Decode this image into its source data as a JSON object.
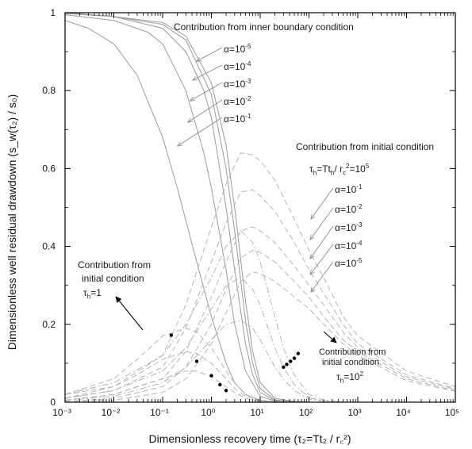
{
  "chart_data": {
    "type": "line",
    "title": "",
    "xlabel": "Dimensionless recovery time (τ₂=Tt₂ / r꜀²)",
    "ylabel": "Dimensionless well residual drawdown (s_w(τ₂) / s₀)",
    "x_scale": "log",
    "xlim": [
      0.001,
      100000
    ],
    "ylim": [
      0,
      1
    ],
    "x_ticks": [
      "10⁻³",
      "10⁻²",
      "10⁻¹",
      "10⁰",
      "10¹",
      "10²",
      "10³",
      "10⁴",
      "10⁵"
    ],
    "y_ticks": [
      "0",
      "0.2",
      "0.4",
      "0.6",
      "0.8",
      "1"
    ],
    "grid": false,
    "legend": "none",
    "series": [
      {
        "group": "inner-boundary",
        "label": "α=10⁻⁵",
        "style": "solid",
        "x": [
          0.001,
          0.01,
          0.1,
          0.3,
          1,
          2,
          3,
          5,
          7,
          10,
          20,
          50,
          100
        ],
        "y": [
          1.0,
          0.99,
          0.975,
          0.94,
          0.82,
          0.66,
          0.5,
          0.26,
          0.13,
          0.05,
          0.01,
          0.002,
          0.0
        ]
      },
      {
        "group": "inner-boundary",
        "label": "α=10⁻⁴",
        "style": "solid",
        "x": [
          0.001,
          0.01,
          0.1,
          0.3,
          1,
          2,
          3,
          5,
          7,
          10,
          20,
          50,
          100
        ],
        "y": [
          1.0,
          0.99,
          0.97,
          0.93,
          0.79,
          0.6,
          0.44,
          0.21,
          0.1,
          0.035,
          0.006,
          0.001,
          0.0
        ]
      },
      {
        "group": "inner-boundary",
        "label": "α=10⁻³",
        "style": "solid",
        "x": [
          0.001,
          0.01,
          0.1,
          0.3,
          0.7,
          1,
          2,
          3,
          5,
          7,
          10,
          20,
          50
        ],
        "y": [
          0.998,
          0.99,
          0.96,
          0.9,
          0.8,
          0.73,
          0.5,
          0.34,
          0.15,
          0.07,
          0.025,
          0.004,
          0.0
        ]
      },
      {
        "group": "inner-boundary",
        "label": "α=10⁻²",
        "style": "solid",
        "x": [
          0.001,
          0.01,
          0.05,
          0.1,
          0.3,
          0.7,
          1,
          2,
          3,
          5,
          10,
          20,
          50
        ],
        "y": [
          0.995,
          0.98,
          0.95,
          0.92,
          0.8,
          0.64,
          0.55,
          0.34,
          0.2,
          0.08,
          0.015,
          0.003,
          0.0
        ]
      },
      {
        "group": "inner-boundary",
        "label": "α=10⁻¹",
        "style": "solid",
        "x": [
          0.001,
          0.003,
          0.01,
          0.03,
          0.1,
          0.2,
          0.5,
          1,
          2,
          3,
          5,
          10,
          20,
          50
        ],
        "y": [
          0.98,
          0.96,
          0.92,
          0.84,
          0.68,
          0.55,
          0.36,
          0.22,
          0.1,
          0.05,
          0.02,
          0.005,
          0.001,
          0.0
        ]
      },
      {
        "group": "initial-condition-1e5",
        "label": "α=10⁻¹",
        "style": "dashed",
        "x": [
          0.001,
          0.01,
          0.1,
          0.3,
          1,
          2,
          4,
          7,
          10,
          20,
          50,
          100,
          200,
          500,
          1000,
          10000,
          100000
        ],
        "y": [
          0.02,
          0.04,
          0.12,
          0.25,
          0.45,
          0.56,
          0.64,
          0.635,
          0.62,
          0.57,
          0.47,
          0.39,
          0.32,
          0.22,
          0.17,
          0.08,
          0.04
        ]
      },
      {
        "group": "initial-condition-1e5",
        "label": "α=10⁻²",
        "style": "dashed",
        "x": [
          0.001,
          0.01,
          0.1,
          0.3,
          1,
          2,
          4,
          7,
          10,
          20,
          50,
          100,
          200,
          500,
          1000,
          10000,
          100000
        ],
        "y": [
          0.01,
          0.03,
          0.09,
          0.19,
          0.36,
          0.46,
          0.54,
          0.545,
          0.53,
          0.49,
          0.41,
          0.34,
          0.28,
          0.2,
          0.15,
          0.07,
          0.035
        ]
      },
      {
        "group": "initial-condition-1e5",
        "label": "α=10⁻³",
        "style": "dashed",
        "x": [
          0.001,
          0.01,
          0.1,
          0.3,
          1,
          2,
          4,
          7,
          10,
          20,
          50,
          100,
          200,
          500,
          1000,
          10000,
          100000
        ],
        "y": [
          0.005,
          0.02,
          0.06,
          0.13,
          0.27,
          0.36,
          0.44,
          0.45,
          0.44,
          0.41,
          0.35,
          0.3,
          0.25,
          0.18,
          0.14,
          0.065,
          0.033
        ]
      },
      {
        "group": "initial-condition-1e5",
        "label": "α=10⁻⁴",
        "style": "dashed",
        "x": [
          0.001,
          0.01,
          0.1,
          0.3,
          1,
          2,
          4,
          7,
          10,
          20,
          50,
          100,
          200,
          500,
          1000,
          10000,
          100000
        ],
        "y": [
          0.002,
          0.01,
          0.04,
          0.09,
          0.2,
          0.29,
          0.37,
          0.39,
          0.385,
          0.36,
          0.31,
          0.27,
          0.22,
          0.16,
          0.13,
          0.06,
          0.03
        ]
      },
      {
        "group": "initial-condition-1e5",
        "label": "α=10⁻⁵",
        "style": "dashed",
        "x": [
          0.001,
          0.01,
          0.1,
          0.3,
          1,
          2,
          4,
          7,
          10,
          20,
          50,
          100,
          200,
          500,
          1000,
          10000,
          100000
        ],
        "y": [
          0.0,
          0.005,
          0.025,
          0.06,
          0.15,
          0.23,
          0.31,
          0.335,
          0.33,
          0.31,
          0.27,
          0.24,
          0.2,
          0.15,
          0.12,
          0.055,
          0.028
        ]
      },
      {
        "group": "initial-condition-1e2",
        "label": "τh=10²",
        "style": "dashdot",
        "x": [
          0.001,
          0.01,
          0.1,
          0.3,
          1,
          2,
          4,
          7,
          10,
          20,
          30,
          50,
          100,
          200,
          500
        ],
        "y": [
          0.02,
          0.05,
          0.12,
          0.2,
          0.32,
          0.4,
          0.44,
          0.41,
          0.36,
          0.22,
          0.14,
          0.07,
          0.02,
          0.005,
          0.0
        ]
      },
      {
        "group": "initial-condition-1e2",
        "label": "τh=10²",
        "style": "dashdot",
        "x": [
          0.001,
          0.01,
          0.1,
          0.3,
          1,
          2,
          4,
          7,
          10,
          20,
          30,
          50,
          100,
          200,
          500
        ],
        "y": [
          0.01,
          0.03,
          0.08,
          0.14,
          0.24,
          0.3,
          0.32,
          0.29,
          0.25,
          0.14,
          0.09,
          0.045,
          0.012,
          0.003,
          0.0
        ]
      },
      {
        "group": "initial-condition-1e2",
        "label": "τh=10²",
        "style": "dashdot",
        "x": [
          0.001,
          0.01,
          0.1,
          0.3,
          1,
          2,
          4,
          7,
          10,
          20,
          30,
          50,
          100,
          200,
          500
        ],
        "y": [
          0.005,
          0.015,
          0.05,
          0.09,
          0.16,
          0.2,
          0.21,
          0.19,
          0.16,
          0.09,
          0.06,
          0.03,
          0.008,
          0.002,
          0.0
        ]
      },
      {
        "group": "initial-condition-1",
        "label": "τh=1",
        "style": "dashed",
        "x": [
          0.001,
          0.01,
          0.03,
          0.1,
          0.3,
          0.5,
          1,
          2,
          3,
          5,
          10,
          20,
          50
        ],
        "y": [
          0.02,
          0.06,
          0.11,
          0.17,
          0.19,
          0.18,
          0.14,
          0.08,
          0.05,
          0.02,
          0.005,
          0.001,
          0.0
        ]
      },
      {
        "group": "initial-condition-1",
        "label": "τh=1",
        "style": "dashed",
        "x": [
          0.001,
          0.01,
          0.03,
          0.1,
          0.3,
          0.5,
          1,
          2,
          3,
          5,
          10,
          20,
          50
        ],
        "y": [
          0.01,
          0.04,
          0.07,
          0.11,
          0.13,
          0.125,
          0.1,
          0.06,
          0.035,
          0.015,
          0.004,
          0.0,
          0.0
        ]
      },
      {
        "group": "initial-condition-1",
        "label": "τh=1",
        "style": "dashed",
        "x": [
          0.001,
          0.01,
          0.03,
          0.1,
          0.3,
          0.5,
          1,
          2,
          3,
          5,
          10,
          20,
          50
        ],
        "y": [
          0.005,
          0.02,
          0.04,
          0.06,
          0.08,
          0.08,
          0.065,
          0.04,
          0.025,
          0.01,
          0.002,
          0.0,
          0.0
        ]
      }
    ],
    "markers": [
      {
        "x": 0.15,
        "y": 0.172
      },
      {
        "x": 0.5,
        "y": 0.105
      },
      {
        "x": 1.0,
        "y": 0.068
      },
      {
        "x": 1.5,
        "y": 0.045
      },
      {
        "x": 2.0,
        "y": 0.03
      },
      {
        "x": 30,
        "y": 0.09
      },
      {
        "x": 35,
        "y": 0.097
      },
      {
        "x": 42,
        "y": 0.105
      },
      {
        "x": 50,
        "y": 0.113
      },
      {
        "x": 60,
        "y": 0.125
      }
    ],
    "annotations": {
      "inner_title": "Contribution from inner boundary condition",
      "inner_alphas": [
        {
          "base": "α=10",
          "exp": "-5"
        },
        {
          "base": "α=10",
          "exp": "-4"
        },
        {
          "base": "α=10",
          "exp": "-3"
        },
        {
          "base": "α=10",
          "exp": "-2"
        },
        {
          "base": "α=10",
          "exp": "-1"
        }
      ],
      "initial_title": "Contribution from initial condition",
      "tau_h_main": {
        "t1": "τ",
        "s1": "h",
        "t2": "=Tt",
        "s2": "h",
        "t3": "/ r",
        "s3": "c",
        "e3": "2",
        "t4": "=10",
        "e4": "5"
      },
      "initial_alphas": [
        {
          "base": "α=10",
          "exp": "-1"
        },
        {
          "base": "α=10",
          "exp": "-2"
        },
        {
          "base": "α=10",
          "exp": "-3"
        },
        {
          "base": "α=10",
          "exp": "-4"
        },
        {
          "base": "α=10",
          "exp": "-5"
        }
      ],
      "tau1_line1": "Contribution from",
      "tau1_line2": "initial condition",
      "tau1_sym": "τ",
      "tau1_sub": "h",
      "tau1_val": "=1",
      "tau2_line1": "Contribution from",
      "tau2_line2": "initial condition",
      "tau2_sym": "τ",
      "tau2_sub": "h",
      "tau2_val": "=10",
      "tau2_exp": "2"
    }
  }
}
